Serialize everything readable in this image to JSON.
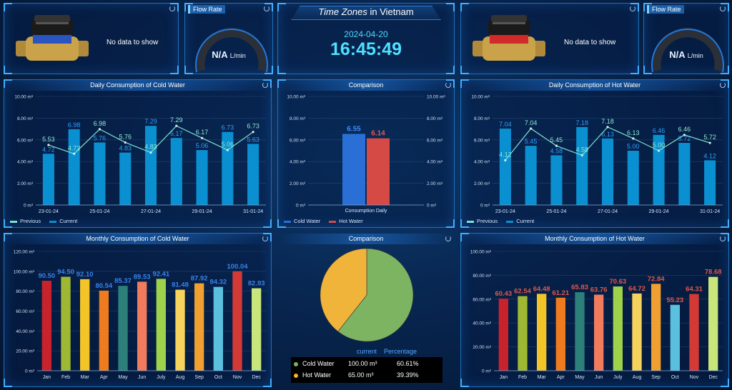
{
  "cold_meter": {
    "no_data": "No data to show"
  },
  "hot_meter": {
    "no_data": "No data to show"
  },
  "flow_left": {
    "tag": "Flow Rate",
    "value": "N/A",
    "unit": "L/min"
  },
  "flow_right": {
    "tag": "Flow Rate",
    "value": "N/A",
    "unit": "L/min"
  },
  "clock": {
    "title_italic": "Time Zones",
    "title_rest": " in Vietnam",
    "date": "2024-04-20",
    "time": "16:45:49"
  },
  "colors": {
    "bar": "#0a8fd0",
    "line": "#7fe0cf",
    "cold": "#2a6fd6",
    "hot": "#d64a45",
    "pie_cold": "#7db462",
    "pie_hot": "#f1b43a"
  },
  "daily_cold": {
    "title": "Daily Consumption of Cold Water",
    "legend_prev": "Previous",
    "legend_curr": "Current",
    "chart_data": {
      "type": "bar",
      "y_ticks": [
        "10.00 m³",
        "8.00 m³",
        "6.00 m³",
        "4.00 m³",
        "2.00 m³",
        "0 m³"
      ],
      "x_labels": [
        "23-01-24",
        "25-01-24",
        "27-01-24",
        "29-01-24",
        "31-01-24"
      ],
      "ylim": [
        0,
        10
      ],
      "current": [
        4.72,
        6.98,
        5.76,
        4.83,
        7.29,
        6.17,
        5.06,
        6.73,
        5.63
      ],
      "previous": [
        5.53,
        4.72,
        6.98,
        5.76,
        4.83,
        7.29,
        6.17,
        5.06,
        6.73
      ],
      "current_labels": [
        "4.72",
        "6.98",
        "5.76",
        "4.83",
        "7.29",
        "6.17",
        "5.06",
        "6.73",
        "5.63"
      ],
      "previous_labels": [
        "5.53",
        "4.72",
        "6.98",
        "5.76",
        "4.83",
        "7.29",
        "6.17",
        "5.06",
        "6.73"
      ]
    }
  },
  "daily_hot": {
    "title": "Daily Consumption of Hot Water",
    "legend_prev": "Previous",
    "legend_curr": "Current",
    "chart_data": {
      "type": "bar",
      "y_ticks": [
        "10.00 m³",
        "8.00 m³",
        "6.00 m³",
        "4.00 m³",
        "2.00 m³",
        "0 m³"
      ],
      "x_labels": [
        "23-01-24",
        "25-01-24",
        "27-01-24",
        "29-01-24",
        "31-01-24"
      ],
      "ylim": [
        0,
        10
      ],
      "current": [
        7.04,
        5.45,
        4.58,
        7.18,
        6.13,
        5.0,
        6.46,
        5.72,
        4.12
      ],
      "previous": [
        4.12,
        7.04,
        5.45,
        4.58,
        7.18,
        6.13,
        5.0,
        6.46,
        5.72
      ],
      "current_labels": [
        "7.04",
        "5.45",
        "4.58",
        "7.18",
        "6.13",
        "5.00",
        "6.46",
        "5.72",
        "4.12"
      ],
      "previous_labels": [
        "4.12",
        "7.04",
        "5.45",
        "4.58",
        "7.18",
        "6.13",
        "5.00",
        "6.46",
        "5.72"
      ]
    }
  },
  "comparison_bar": {
    "title": "Comparison",
    "legend_cold": "Cold Water",
    "legend_hot": "Hot Water",
    "chart_data": {
      "type": "bar",
      "y_ticks": [
        "10.00 m³",
        "8.00 m³",
        "6.00 m³",
        "4.00 m³",
        "2.00 m³",
        "0 m³"
      ],
      "category": "Consumption Daily",
      "ylim": [
        0,
        10
      ],
      "cold": 6.55,
      "hot": 6.14,
      "cold_label": "6.55",
      "hot_label": "6.14"
    }
  },
  "monthly_cold": {
    "title": "Monthly Consumption of Cold Water",
    "chart_data": {
      "type": "bar",
      "y_ticks": [
        "120.00 m³",
        "100.00 m³",
        "80.00 m³",
        "60.00 m³",
        "40.00 m³",
        "20.00 m³",
        "0 m³"
      ],
      "ylim": [
        0,
        120
      ],
      "categories": [
        "Jan",
        "Feb",
        "Mar",
        "Apr",
        "May",
        "Jun",
        "July",
        "Aug",
        "Sep",
        "Oct",
        "Nov",
        "Dec"
      ],
      "values": [
        90.5,
        94.5,
        92.1,
        80.54,
        85.37,
        89.53,
        92.41,
        81.48,
        87.92,
        84.32,
        100.04,
        82.93
      ],
      "labels": [
        "90.50",
        "94.50",
        "92.10",
        "80.54",
        "85.37",
        "89.53",
        "92.41",
        "81.48",
        "87.92",
        "84.32",
        "100.04",
        "82.93"
      ]
    }
  },
  "monthly_hot": {
    "title": "Monthly Consumption of Hot Water",
    "chart_data": {
      "type": "bar",
      "y_ticks": [
        "100.00 m³",
        "80.00 m³",
        "60.00 m³",
        "40.00 m³",
        "20.00 m³",
        "0 m³"
      ],
      "ylim": [
        0,
        100
      ],
      "categories": [
        "Jan",
        "Feb",
        "Mar",
        "Apr",
        "May",
        "Jun",
        "July",
        "Aug",
        "Sep",
        "Oct",
        "Nov",
        "Dec"
      ],
      "values": [
        60.43,
        62.54,
        64.48,
        61.21,
        65.83,
        63.76,
        70.63,
        64.72,
        72.84,
        55.23,
        64.31,
        78.68
      ],
      "labels": [
        "60.43",
        "62.54",
        "64.48",
        "61.21",
        "65.83",
        "63.76",
        "70.63",
        "64.72",
        "72.84",
        "55.23",
        "64.31",
        "78.68"
      ]
    }
  },
  "month_colors": [
    "#c8232c",
    "#9fb833",
    "#f2c428",
    "#ee7b1e",
    "#2d7f7a",
    "#f27b5e",
    "#9ed24a",
    "#f6d35c",
    "#f0a030",
    "#5bc0de",
    "#d43a35",
    "#c8e67a"
  ],
  "comparison_pie": {
    "title": "Comparison",
    "chart_data": {
      "type": "pie",
      "slices": [
        {
          "name": "Cold Water",
          "value": 100.0,
          "percent": 60.61
        },
        {
          "name": "Hot Water",
          "value": 65.0,
          "percent": 39.39
        }
      ]
    },
    "table": {
      "col_current": "current",
      "col_pct": "Percentage",
      "rows": [
        {
          "name": "Cold Water",
          "current": "100.00 m³",
          "pct": "60.61%"
        },
        {
          "name": "Hot Water",
          "current": "65.00 m³",
          "pct": "39.39%"
        }
      ]
    }
  }
}
